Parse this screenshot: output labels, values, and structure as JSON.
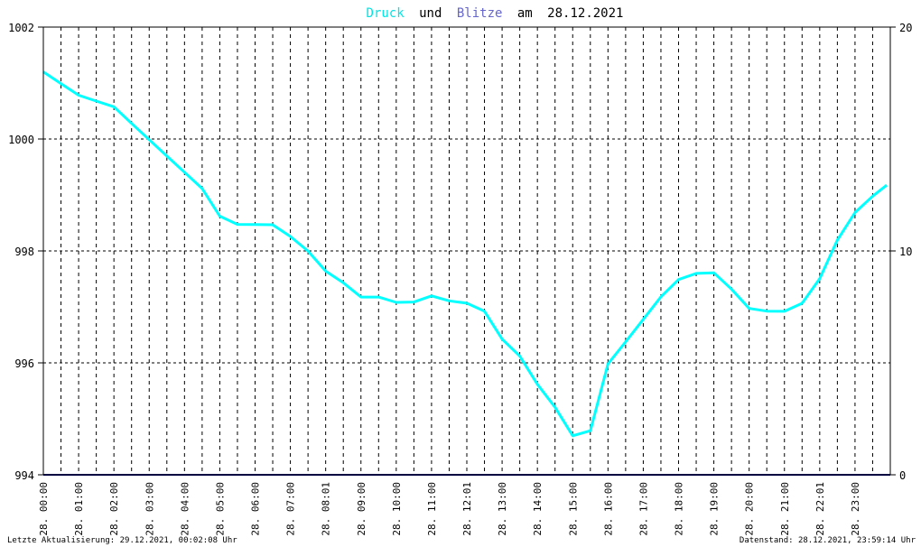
{
  "title": {
    "part_druck": "Druck",
    "part_und": "und",
    "part_blitze": "Blitze",
    "part_am": "am",
    "date": "28.12.2021"
  },
  "footer": {
    "left": "Letzte Aktualisierung: 29.12.2021, 00:02:08 Uhr",
    "right": "Datenstand: 28.12.2021, 23:59:14 Uhr"
  },
  "colors": {
    "druck": "#00ffff",
    "blitze": "#000080",
    "title_blitze": "#6666cc",
    "grid": "#000000",
    "frame": "#000000"
  },
  "chart_data": {
    "type": "line",
    "title": "Druck und Blitze am 28.12.2021",
    "x_tick_labels": [
      "28. 00:00",
      "28. 01:00",
      "28. 02:00",
      "28. 03:00",
      "28. 04:00",
      "28. 05:00",
      "28. 06:00",
      "28. 07:00",
      "28. 08:01",
      "28. 09:00",
      "28. 10:00",
      "28. 11:00",
      "28. 12:01",
      "28. 13:00",
      "28. 14:00",
      "28. 15:00",
      "28. 16:00",
      "28. 17:00",
      "28. 18:00",
      "28. 19:00",
      "28. 20:00",
      "28. 21:00",
      "28. 22:01",
      "28. 23:00"
    ],
    "xlim": [
      0,
      24
    ],
    "y_left": {
      "ylim": [
        994,
        1002
      ],
      "ticks": [
        "994",
        "996",
        "998",
        "1000",
        "1002"
      ]
    },
    "y_right": {
      "ylim": [
        0,
        20
      ],
      "ticks": [
        "0",
        "10",
        "20"
      ]
    },
    "grid": true,
    "series": [
      {
        "name": "Druck",
        "axis": "left",
        "x": [
          0,
          0.5,
          1,
          1.5,
          2,
          2.5,
          3,
          3.5,
          4,
          4.5,
          5,
          5.5,
          6,
          6.5,
          7,
          7.5,
          8,
          8.5,
          9,
          9.5,
          10,
          10.5,
          11,
          11.5,
          12,
          12.5,
          13,
          13.5,
          14,
          14.5,
          15,
          15.5,
          16,
          16.5,
          17,
          17.5,
          18,
          18.5,
          19,
          19.5,
          20,
          20.5,
          21,
          21.5,
          22,
          22.5,
          23,
          23.5,
          23.9
        ],
        "values": [
          1001.2,
          1001.0,
          1000.8,
          1000.7,
          1000.6,
          1000.3,
          1000.0,
          999.7,
          999.4,
          999.1,
          998.6,
          998.45,
          998.45,
          998.45,
          998.25,
          998.0,
          997.65,
          997.45,
          997.2,
          997.2,
          997.1,
          997.1,
          997.2,
          997.1,
          997.05,
          996.9,
          996.4,
          996.1,
          995.6,
          995.2,
          994.7,
          994.8,
          996.0,
          996.4,
          996.8,
          997.2,
          997.5,
          997.6,
          997.6,
          997.3,
          996.95,
          996.9,
          996.9,
          997.05,
          997.5,
          998.2,
          998.7,
          999.0,
          999.2
        ]
      },
      {
        "name": "Blitze",
        "axis": "right",
        "x": [
          0,
          24
        ],
        "values": [
          0,
          0
        ]
      }
    ]
  }
}
